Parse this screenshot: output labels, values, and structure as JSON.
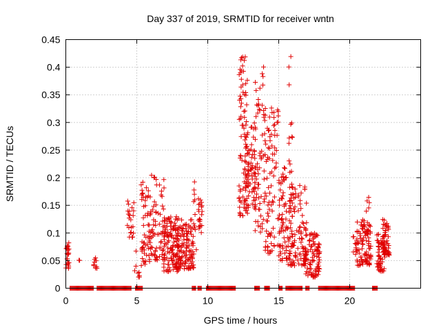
{
  "chart_data": {
    "type": "scatter",
    "title": "Day 337 of 2019, SRMTID for receiver wntn",
    "xlabel": "GPS time / hours",
    "ylabel": "SRMTID / TECUs",
    "xlim": [
      0,
      25
    ],
    "ylim": [
      0,
      0.45
    ],
    "xticks": [
      0,
      5,
      10,
      15,
      20
    ],
    "xtick_labels": [
      "0",
      "5",
      "10",
      "15",
      "20"
    ],
    "yticks": [
      0,
      0.05,
      0.1,
      0.15,
      0.2,
      0.25,
      0.3,
      0.35,
      0.4,
      0.45
    ],
    "ytick_labels": [
      "0",
      "0.05",
      "0.1",
      "0.15",
      "0.2",
      "0.25",
      "0.3",
      "0.35",
      "0.4",
      "0.45"
    ],
    "grid": true,
    "marker": "+",
    "color": "#e00000",
    "series": [
      {
        "name": "SRMTID",
        "clusters": [
          {
            "x_range": [
              0.0,
              0.25
            ],
            "y_range": [
              0.035,
              0.085
            ],
            "count": 24,
            "seed": 11
          },
          {
            "x_range": [
              0.9,
              1.0
            ],
            "y_range": [
              0.05,
              0.055
            ],
            "count": 2,
            "seed": 12
          },
          {
            "x_range": [
              1.95,
              2.2
            ],
            "y_range": [
              0.035,
              0.058
            ],
            "count": 10,
            "seed": 13
          },
          {
            "x_range": [
              4.3,
              4.8
            ],
            "y_range": [
              0.09,
              0.158
            ],
            "count": 22,
            "seed": 14
          },
          {
            "x_range": [
              4.85,
              5.2
            ],
            "y_range": [
              0.02,
              0.07
            ],
            "count": 8,
            "seed": 15
          },
          {
            "x_range": [
              5.3,
              6.0
            ],
            "y_range": [
              0.04,
              0.2
            ],
            "count": 60,
            "seed": 16
          },
          {
            "x_range": [
              6.0,
              7.0
            ],
            "y_range": [
              0.05,
              0.205
            ],
            "count": 70,
            "seed": 17
          },
          {
            "x_range": [
              6.9,
              8.0
            ],
            "y_range": [
              0.03,
              0.13
            ],
            "count": 120,
            "seed": 18
          },
          {
            "x_range": [
              7.8,
              9.0
            ],
            "y_range": [
              0.035,
              0.125
            ],
            "count": 120,
            "seed": 19
          },
          {
            "x_range": [
              9.0,
              9.2
            ],
            "y_range": [
              0.06,
              0.2
            ],
            "count": 12,
            "seed": 20
          },
          {
            "x_range": [
              9.3,
              9.6
            ],
            "y_range": [
              0.1,
              0.162
            ],
            "count": 22,
            "seed": 21
          },
          {
            "x_range": [
              12.2,
              12.8
            ],
            "y_range": [
              0.13,
              0.42
            ],
            "count": 80,
            "seed": 22
          },
          {
            "x_range": [
              12.6,
              13.4
            ],
            "y_range": [
              0.14,
              0.3
            ],
            "count": 80,
            "seed": 23
          },
          {
            "x_range": [
              13.3,
              14.0
            ],
            "y_range": [
              0.1,
              0.41
            ],
            "count": 60,
            "seed": 24
          },
          {
            "x_range": [
              14.0,
              15.0
            ],
            "y_range": [
              0.06,
              0.33
            ],
            "count": 90,
            "seed": 25
          },
          {
            "x_range": [
              15.0,
              15.6
            ],
            "y_range": [
              0.05,
              0.22
            ],
            "count": 60,
            "seed": 26
          },
          {
            "x_range": [
              15.7,
              16.0
            ],
            "y_range": [
              0.06,
              0.42
            ],
            "count": 20,
            "seed": 27
          },
          {
            "x_range": [
              15.6,
              17.0
            ],
            "y_range": [
              0.04,
              0.19
            ],
            "count": 120,
            "seed": 28
          },
          {
            "x_range": [
              16.9,
              17.9
            ],
            "y_range": [
              0.02,
              0.1
            ],
            "count": 90,
            "seed": 29
          },
          {
            "x_range": [
              20.2,
              20.5
            ],
            "y_range": [
              0.06,
              0.1
            ],
            "count": 10,
            "seed": 30
          },
          {
            "x_range": [
              20.5,
              21.5
            ],
            "y_range": [
              0.04,
              0.125
            ],
            "count": 90,
            "seed": 31
          },
          {
            "x_range": [
              21.0,
              21.4
            ],
            "y_range": [
              0.1,
              0.165
            ],
            "count": 12,
            "seed": 32
          },
          {
            "x_range": [
              21.9,
              22.5
            ],
            "y_range": [
              0.03,
              0.1
            ],
            "count": 60,
            "seed": 33
          },
          {
            "x_range": [
              22.3,
              22.8
            ],
            "y_range": [
              0.06,
              0.125
            ],
            "count": 50,
            "seed": 34
          }
        ],
        "zero_segments": [
          [
            0.3,
            2.0
          ],
          [
            2.2,
            4.6
          ],
          [
            4.9,
            5.4
          ],
          [
            8.9,
            9.2
          ],
          [
            9.3,
            9.6
          ],
          [
            9.9,
            12.0
          ],
          [
            13.3,
            13.7
          ],
          [
            14.0,
            14.4
          ],
          [
            15.0,
            15.3
          ],
          [
            15.5,
            16.7
          ],
          [
            16.9,
            17.2
          ],
          [
            17.8,
            20.4
          ],
          [
            21.6,
            22.0
          ]
        ]
      }
    ]
  }
}
